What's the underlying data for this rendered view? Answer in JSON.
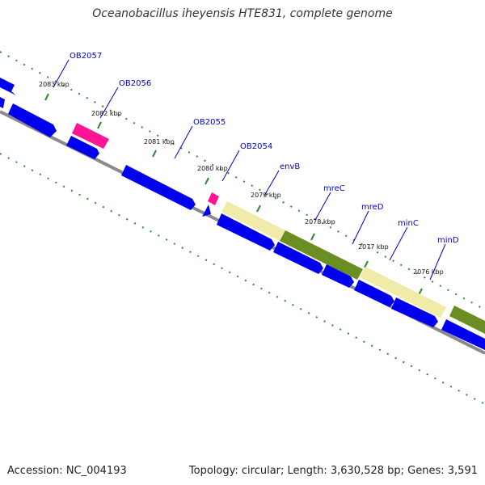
{
  "title": "Oceanobacillus iheyensis HTE831, complete genome",
  "footer": {
    "accession": "Accession: NC_004193",
    "summary": "Topology: circular; Length: 3,630,528 bp; Genes: 3,591"
  },
  "colors": {
    "backbone": "#8a8a8a",
    "tick": "#2e8b2e",
    "cds_forward": "#0000ee",
    "cds_reverse": "#0000ee",
    "rrna": "#ff1493",
    "gene_pale": "#f0eba8",
    "gene_olive": "#6b8e23",
    "label": "#0000cc"
  },
  "kbp_labels": [
    "2083 kbp",
    "2082 kbp",
    "2081 kbp",
    "2080 kbp",
    "2079 kbp",
    "2078 kbp",
    "2077 kbp",
    "2076 kbp"
  ],
  "gene_labels": [
    "OB2057",
    "OB2056",
    "OB2055",
    "OB2054",
    "envB",
    "mreC",
    "mreD",
    "minC",
    "minD"
  ]
}
